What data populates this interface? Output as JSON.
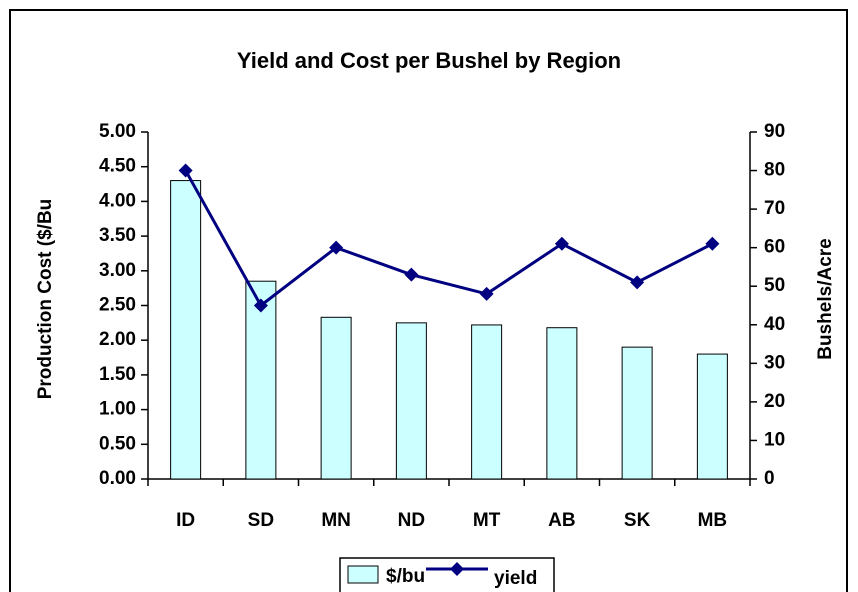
{
  "chart_data": {
    "type": "bar",
    "title": "Yield and Cost per Bushel by Region",
    "y_label": "Production Cost ($/Bu",
    "y2_label": "Bushels/Acre",
    "categories": [
      "ID",
      "SD",
      "MN",
      "ND",
      "MT",
      "AB",
      "SK",
      "MB"
    ],
    "series": [
      {
        "name": "$/bu",
        "type": "bar",
        "color": "#ccffff",
        "values": [
          4.3,
          2.85,
          2.33,
          2.25,
          2.22,
          2.18,
          1.9,
          1.8
        ]
      },
      {
        "name": "yield",
        "type": "line",
        "axis": "y2",
        "color": "#000080",
        "values": [
          80,
          45,
          60,
          53,
          48,
          61,
          51,
          61
        ]
      }
    ],
    "ylim": [
      0,
      5
    ],
    "yticks": [
      {
        "value": 0,
        "label": "0.00"
      },
      {
        "value": 0.5,
        "label": "0.50"
      },
      {
        "value": 1,
        "label": "1.00"
      },
      {
        "value": 1.5,
        "label": "1.50"
      },
      {
        "value": 2,
        "label": "2.00"
      },
      {
        "value": 2.5,
        "label": "2.50"
      },
      {
        "value": 3,
        "label": "3.00"
      },
      {
        "value": 3.5,
        "label": "3.50"
      },
      {
        "value": 4,
        "label": "4.00"
      },
      {
        "value": 4.5,
        "label": "4.50"
      },
      {
        "value": 5,
        "label": "5.00"
      }
    ],
    "y2lim": [
      0,
      90
    ],
    "y2ticks": [
      0,
      10,
      20,
      30,
      40,
      50,
      60,
      70,
      80,
      90
    ],
    "legend": "bottom"
  }
}
